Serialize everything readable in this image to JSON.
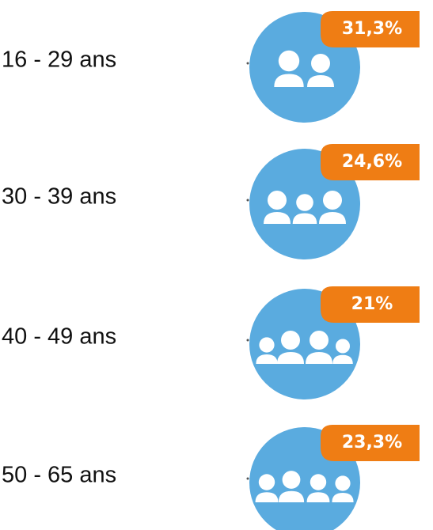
{
  "rows": [
    {
      "label": "16 - 29 ans",
      "percent": "31,3%"
    },
    {
      "label": "30 - 39 ans",
      "percent": "24,6%"
    },
    {
      "label": "40 - 49 ans",
      "percent": "21%"
    },
    {
      "label": "50 - 65 ans",
      "percent": "23,3%"
    }
  ]
}
